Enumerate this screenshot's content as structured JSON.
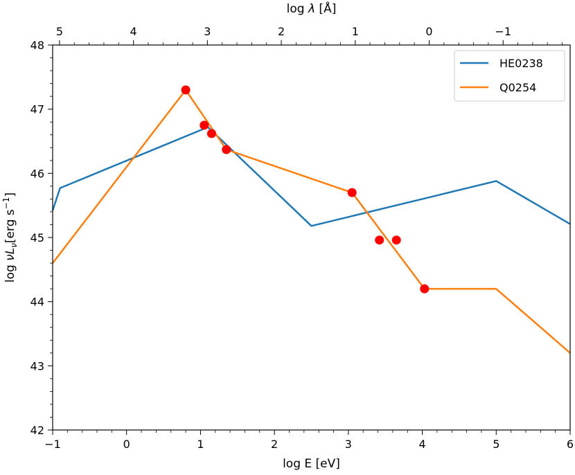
{
  "chart_data": {
    "type": "line",
    "x": {
      "label": "log E [eV]",
      "range": [
        -1,
        6
      ],
      "ticks": [
        -1,
        0,
        1,
        2,
        3,
        4,
        5,
        6
      ],
      "tick_labels": [
        "−1",
        "0",
        "1",
        "2",
        "3",
        "4",
        "5",
        "6"
      ]
    },
    "x_top": {
      "label_prefix": "log ",
      "label_symbol": "λ",
      "label_suffix": " [Å]",
      "tick_positions_logE": [
        -0.907,
        0.093,
        1.093,
        2.093,
        3.093,
        4.093,
        5.093
      ],
      "tick_labels": [
        "5",
        "4",
        "3",
        "2",
        "1",
        "0",
        "−1"
      ]
    },
    "y": {
      "label_prefix": "log ",
      "label_symbol": "νL",
      "label_subscript": "ν",
      "label_unit": "[erg s",
      "label_exponent": "−1",
      "label_close": "]",
      "range": [
        42,
        48
      ],
      "ticks": [
        42,
        43,
        44,
        45,
        46,
        47,
        48
      ],
      "tick_labels": [
        "42",
        "43",
        "44",
        "45",
        "46",
        "47",
        "48"
      ]
    },
    "series": [
      {
        "name": "HE0238",
        "color": "#1f77b4",
        "x": [
          -1,
          -0.9,
          1.1,
          2.5,
          5.0,
          6.0
        ],
        "y": [
          45.42,
          45.77,
          46.72,
          45.18,
          45.88,
          45.21
        ]
      },
      {
        "name": "Q0254",
        "color": "#ff7f0e",
        "x": [
          -1,
          0.8,
          1.35,
          3.05,
          4.03,
          5.0,
          6.0
        ],
        "y": [
          44.6,
          47.3,
          46.37,
          45.7,
          44.2,
          44.2,
          43.2
        ]
      }
    ],
    "scatter": {
      "color": "#ff0000",
      "x": [
        0.8,
        1.05,
        1.15,
        1.35,
        3.05,
        3.42,
        3.65,
        4.03
      ],
      "y": [
        47.3,
        46.75,
        46.62,
        46.37,
        45.7,
        44.96,
        44.96,
        44.2
      ]
    },
    "legend": {
      "position": "top-right",
      "entries": [
        "HE0238",
        "Q0254"
      ]
    }
  }
}
